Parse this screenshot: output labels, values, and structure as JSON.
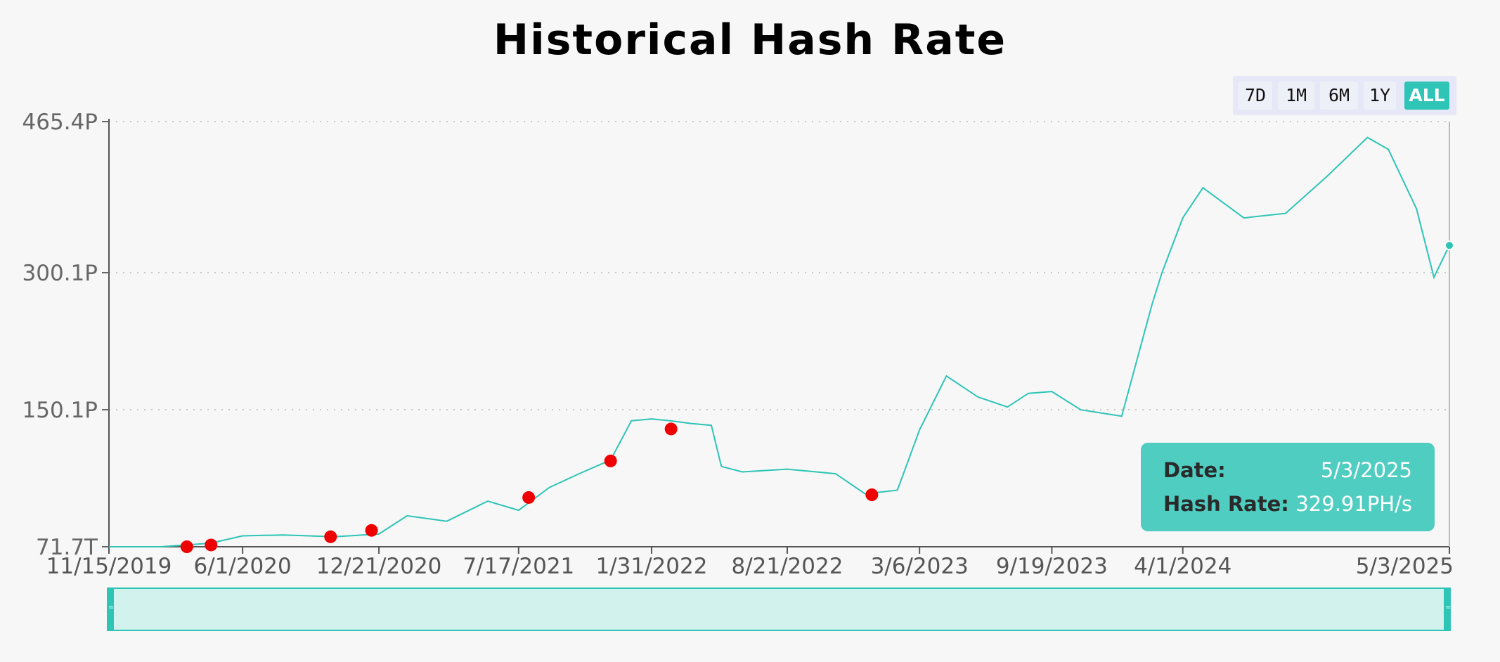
{
  "title": "Historical Hash Rate",
  "range_buttons": [
    {
      "label": "7D",
      "active": false
    },
    {
      "label": "1M",
      "active": false
    },
    {
      "label": "6M",
      "active": false
    },
    {
      "label": "1Y",
      "active": false
    },
    {
      "label": "ALL",
      "active": true
    }
  ],
  "tooltip": {
    "date_label": "Date:",
    "date_value": "5/3/2025",
    "rate_label": "Hash Rate:",
    "rate_value": "329.91PH/s"
  },
  "colors": {
    "line": "#2ec4b6",
    "markers": "#ee0000",
    "tooltip_bg": "#4ecdc0"
  },
  "chart_data": {
    "type": "line",
    "title": "Historical Hash Rate",
    "xlabel": "",
    "ylabel": "",
    "y_unit": "PH/s",
    "ylim": [
      0.0717,
      465.4
    ],
    "xlim": [
      "2019-11-15",
      "2025-05-03"
    ],
    "y_ticks": [
      "71.7T",
      "150.1P",
      "300.1P",
      "465.4P"
    ],
    "y_tick_values": [
      0.0717,
      150.1,
      300.1,
      465.4
    ],
    "x_ticks": [
      "11/15/2019",
      "6/1/2020",
      "12/21/2020",
      "7/17/2021",
      "1/31/2022",
      "8/21/2022",
      "3/6/2023",
      "9/19/2023",
      "4/1/2024",
      "5/3/2025"
    ],
    "grid": "horizontal dotted",
    "series": [
      {
        "x": [
          "2019-11-15",
          "2020-02-01",
          "2020-04-15",
          "2020-06-01",
          "2020-08-01",
          "2020-10-15",
          "2020-12-21",
          "2021-02-01",
          "2021-04-01",
          "2021-06-01",
          "2021-07-17",
          "2021-09-01",
          "2021-10-15",
          "2021-12-01",
          "2022-01-01",
          "2022-01-31",
          "2022-02-28",
          "2022-03-31",
          "2022-04-30",
          "2022-05-15",
          "2022-06-15",
          "2022-08-21",
          "2022-11-01",
          "2022-12-15",
          "2023-02-01",
          "2023-03-06",
          "2023-04-15",
          "2023-06-01",
          "2023-07-15",
          "2023-08-15",
          "2023-09-19",
          "2023-11-01",
          "2024-01-01",
          "2024-02-15",
          "2024-03-01",
          "2024-04-01",
          "2024-05-01",
          "2024-07-01",
          "2024-09-01",
          "2024-11-01",
          "2025-01-01",
          "2025-02-01",
          "2025-03-15",
          "2025-04-10",
          "2025-05-03"
        ],
        "y": [
          0.0717,
          0.0717,
          4,
          12,
          13,
          11,
          14,
          34,
          28,
          50,
          40,
          65,
          80,
          95,
          138,
          140,
          138,
          135,
          133,
          88,
          82,
          85,
          80,
          58,
          62,
          128,
          187,
          164,
          153,
          168,
          170,
          150,
          143,
          265,
          300,
          360,
          393,
          360,
          365,
          405,
          448,
          435,
          370,
          295,
          329.91
        ]
      }
    ],
    "markers": {
      "x": [
        "2020-03-10",
        "2020-04-15",
        "2020-10-10",
        "2020-12-10",
        "2021-08-01",
        "2021-12-01",
        "2022-03-01",
        "2022-12-25"
      ],
      "y": [
        0.0717,
        2,
        11,
        18,
        54,
        94,
        129,
        57
      ]
    }
  }
}
